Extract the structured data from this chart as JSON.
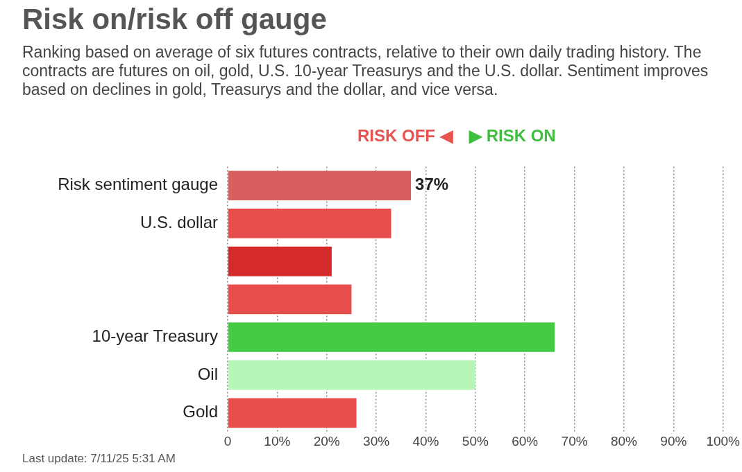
{
  "chart_data": {
    "type": "bar",
    "orientation": "horizontal",
    "title": "Risk on/risk off gauge",
    "subtitle": "Ranking based on average of six futures contracts, relative to their own daily trading history. The contracts are futures on oil, gold, U.S. 10-year Treasurys and the U.S. dollar. Sentiment improves based on declines in gold, Treasurys and the dollar, and vice versa.",
    "categories": [
      "Risk sentiment gauge",
      "U.S. dollar",
      null,
      null,
      "10-year Treasury",
      "Oil",
      "Gold"
    ],
    "values": [
      37,
      33,
      21,
      25,
      66,
      50,
      26
    ],
    "colors": [
      "#d95f5f",
      "#e84d4d",
      "#d42a2a",
      "#e84d4d",
      "#44cc44",
      "#b8f5b8",
      "#e84d4d"
    ],
    "value_labels": [
      "37%",
      null,
      null,
      null,
      null,
      null,
      null
    ],
    "xlim": [
      0,
      100
    ],
    "xticks": [
      {
        "value": 0,
        "label": "0"
      },
      {
        "value": 10,
        "label": "10%"
      },
      {
        "value": 20,
        "label": "20%"
      },
      {
        "value": 30,
        "label": "30%"
      },
      {
        "value": 40,
        "label": "40%"
      },
      {
        "value": 50,
        "label": "50%"
      },
      {
        "value": 60,
        "label": "60%"
      },
      {
        "value": 70,
        "label": "70%"
      },
      {
        "value": 80,
        "label": "80%"
      },
      {
        "value": 90,
        "label": "90%"
      },
      {
        "value": 100,
        "label": "100%"
      }
    ],
    "grid": "x",
    "legend": false,
    "annotations": [
      "RISK OFF ◀",
      "▶ RISK ON",
      "Last update: 7/11/25 5:31 AM"
    ]
  }
}
